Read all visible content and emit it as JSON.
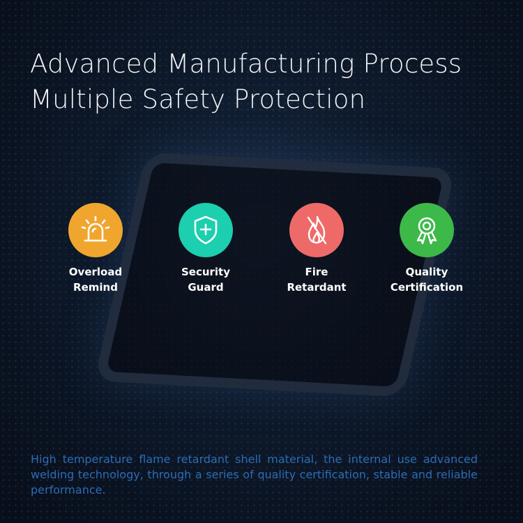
{
  "title": {
    "line1": "Advanced Manufacturing Process",
    "line2": "Multiple Safety Protection"
  },
  "features": [
    {
      "label1": "Overload",
      "label2": "Remind",
      "icon": "alarm-light-icon",
      "color": "#f0a62e"
    },
    {
      "label1": "Security",
      "label2": "Guard",
      "icon": "shield-plus-icon",
      "color": "#1ccfae"
    },
    {
      "label1": "Fire",
      "label2": "Retardant",
      "icon": "no-fire-icon",
      "color": "#ee6a68"
    },
    {
      "label1": "Quality",
      "label2": "Certification",
      "icon": "award-ribbon-icon",
      "color": "#3db94a"
    }
  ],
  "description": "High temperature flame retardant shell material, the internal use advanced welding technology, through a series of quality certification, stable and reliable performance."
}
